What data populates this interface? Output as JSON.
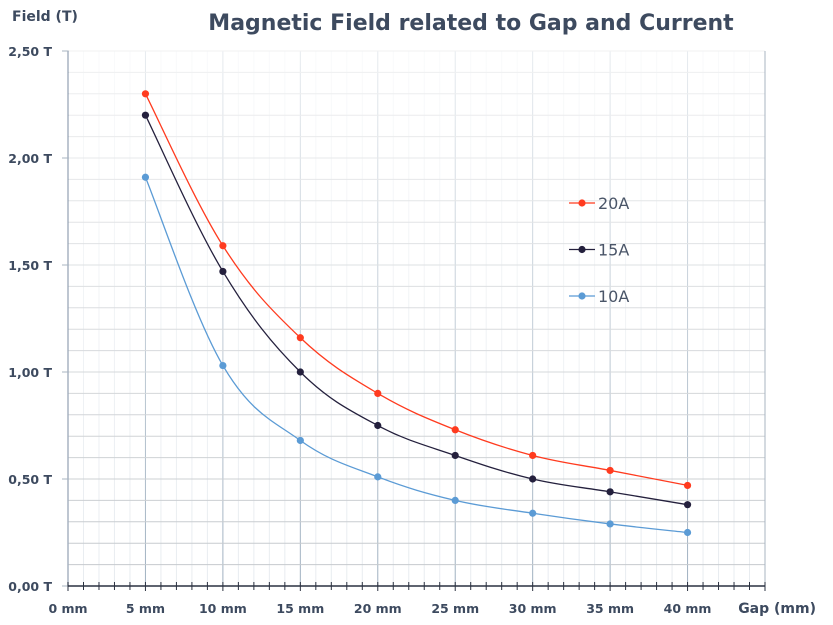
{
  "chart_data": {
    "type": "line",
    "title": "Magnetic Field related to Gap and Current",
    "xlabel": "Gap (mm)",
    "ylabel": "Field (T)",
    "x": [
      5,
      10,
      15,
      20,
      25,
      30,
      35,
      40
    ],
    "xlim": [
      0,
      45
    ],
    "ylim": [
      0,
      2.5
    ],
    "x_ticks": [
      0,
      5,
      10,
      15,
      20,
      25,
      30,
      35,
      40
    ],
    "x_tick_labels": [
      "0 mm",
      "5 mm",
      "10 mm",
      "15 mm",
      "20 mm",
      "25 mm",
      "30 mm",
      "35 mm",
      "40 mm"
    ],
    "y_ticks": [
      0,
      0.5,
      1.0,
      1.5,
      2.0,
      2.5
    ],
    "y_tick_labels": [
      "0,00 T",
      "0,50 T",
      "1,00 T",
      "1,50 T",
      "2,00 T",
      "2,50 T"
    ],
    "grid": true,
    "smooth": true,
    "legend_position": "right",
    "series": [
      {
        "name": "20A",
        "color": "#ff3b1f",
        "values": [
          2.3,
          1.59,
          1.16,
          0.9,
          0.73,
          0.61,
          0.54,
          0.47
        ]
      },
      {
        "name": "15A",
        "color": "#24203d",
        "values": [
          2.2,
          1.47,
          1.0,
          0.75,
          0.61,
          0.5,
          0.44,
          0.38
        ]
      },
      {
        "name": "10A",
        "color": "#5b9bd5",
        "values": [
          1.91,
          1.03,
          0.68,
          0.51,
          0.4,
          0.34,
          0.29,
          0.25
        ]
      }
    ]
  }
}
